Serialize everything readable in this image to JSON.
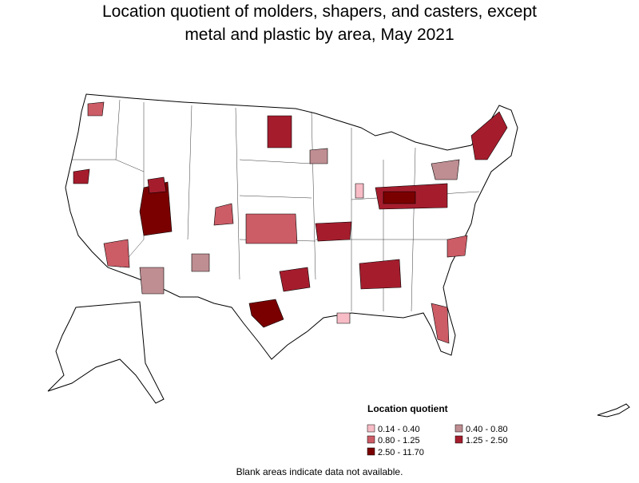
{
  "title_lines": [
    "Location quotient of molders, shapers, and casters, except",
    "metal and plastic by area, May 2021"
  ],
  "legend": {
    "title": "Location quotient",
    "items": [
      {
        "label": "0.14 - 0.40",
        "color": "#f7bcc6"
      },
      {
        "label": "0.40 - 0.80",
        "color": "#bf8e92"
      },
      {
        "label": "0.80 - 1.25",
        "color": "#cc5c66"
      },
      {
        "label": "1.25 - 2.50",
        "color": "#a51d2d"
      },
      {
        "label": "2.50 - 11.70",
        "color": "#7a0000"
      }
    ]
  },
  "note": "Blank areas indicate data not available."
}
